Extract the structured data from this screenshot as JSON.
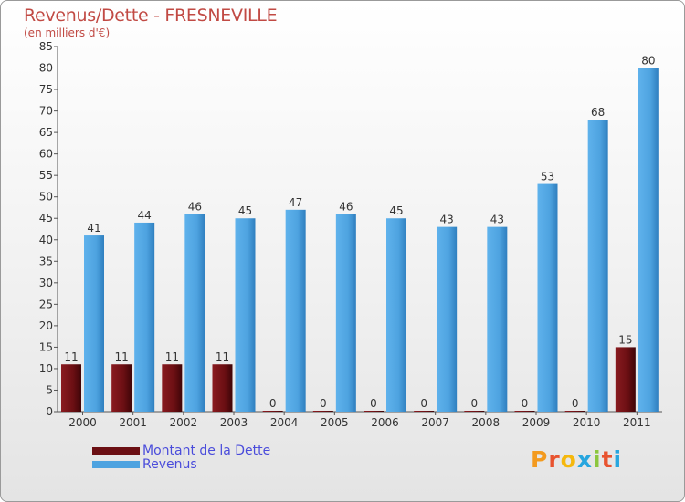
{
  "title": "Revenus/Dette - FRESNEVILLE",
  "subtitle": "(en milliers d'€)",
  "legend": {
    "debt_label": "Montant de la Dette",
    "revenue_label": "Revenus"
  },
  "logo": {
    "text": "Proxiti",
    "letter_colors": [
      "#f39a1e",
      "#e8532f",
      "#f5b80d",
      "#27a6df",
      "#8cc63f",
      "#e8532f",
      "#27a6df"
    ]
  },
  "colors": {
    "debt": "#6b0f13",
    "revenue": "#4ea3e0",
    "title": "#c14a44",
    "legend_text": "#4a4cdb"
  },
  "chart_data": {
    "type": "bar",
    "title": "Revenus/Dette - FRESNEVILLE",
    "subtitle": "(en milliers d'€)",
    "xlabel": "",
    "ylabel": "",
    "ylim": [
      0,
      85
    ],
    "ytick_step": 5,
    "grid": false,
    "legend_position": "bottom-left",
    "categories": [
      "2000",
      "2001",
      "2002",
      "2003",
      "2004",
      "2005",
      "2006",
      "2007",
      "2008",
      "2009",
      "2010",
      "2011"
    ],
    "series": [
      {
        "name": "Montant de la Dette",
        "values": [
          11,
          11,
          11,
          11,
          0,
          0,
          0,
          0,
          0,
          0,
          0,
          15
        ]
      },
      {
        "name": "Revenus",
        "values": [
          41,
          44,
          46,
          45,
          47,
          46,
          45,
          43,
          43,
          53,
          68,
          80
        ]
      }
    ]
  }
}
